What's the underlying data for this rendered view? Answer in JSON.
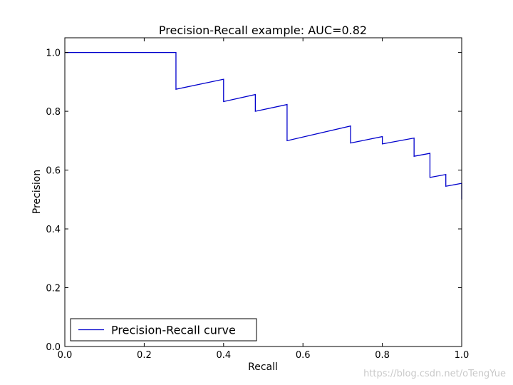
{
  "chart_data": {
    "type": "line",
    "title": "Precision-Recall example: AUC=0.82",
    "xlabel": "Recall",
    "ylabel": "Precision",
    "xlim": [
      0.0,
      1.0
    ],
    "ylim": [
      0.0,
      1.05
    ],
    "xticks": [
      "0.0",
      "0.2",
      "0.4",
      "0.6",
      "0.8",
      "1.0"
    ],
    "yticks": [
      "0.0",
      "0.2",
      "0.4",
      "0.6",
      "0.8",
      "1.0"
    ],
    "grid": false,
    "legend_position": "lower-left",
    "series": [
      {
        "name": "Precision-Recall curve",
        "color": "#0000cc",
        "x": [
          0.0,
          0.28,
          0.28,
          0.4,
          0.4,
          0.48,
          0.48,
          0.56,
          0.56,
          0.72,
          0.72,
          0.8,
          0.8,
          0.88,
          0.88,
          0.92,
          0.92,
          0.96,
          0.96,
          1.0,
          1.0
        ],
        "y": [
          1.0,
          1.0,
          0.875,
          0.909,
          0.833,
          0.857,
          0.8,
          0.823,
          0.7,
          0.75,
          0.692,
          0.714,
          0.689,
          0.709,
          0.647,
          0.657,
          0.575,
          0.585,
          0.545,
          0.555,
          0.5
        ]
      }
    ]
  },
  "watermark": "https://blog.csdn.net/oTengYue"
}
